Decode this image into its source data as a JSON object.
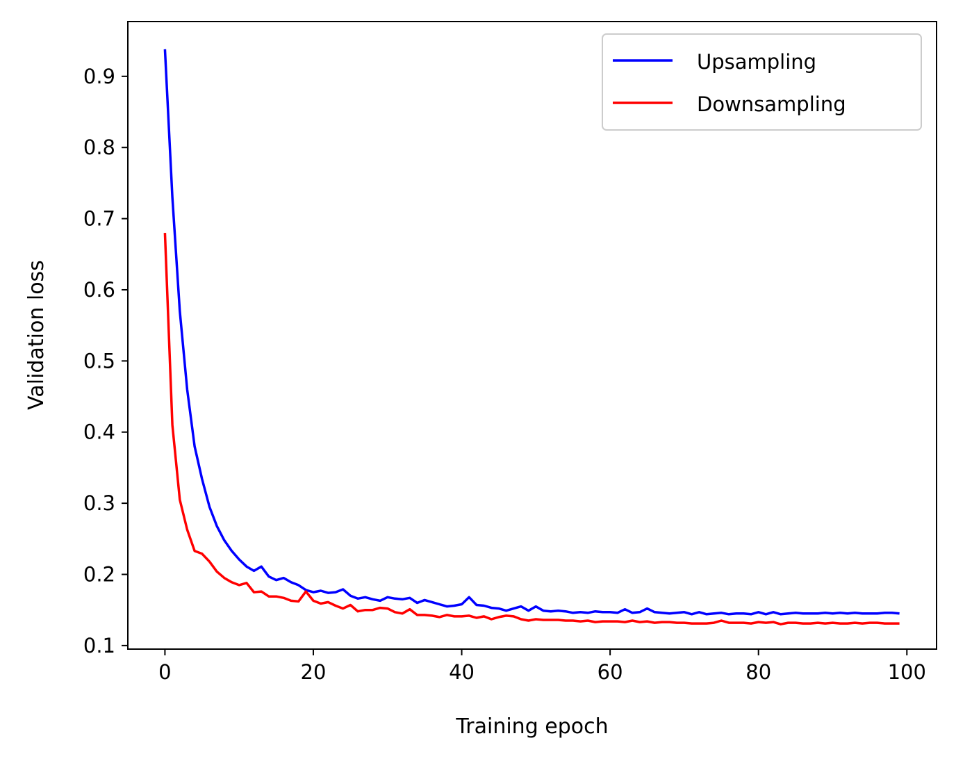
{
  "chart_data": {
    "type": "line",
    "title": "",
    "xlabel": "Training epoch",
    "ylabel": "Validation loss",
    "xlim": [
      -5,
      104
    ],
    "ylim": [
      0.095,
      0.977
    ],
    "xticks": [
      0,
      20,
      40,
      60,
      80,
      100
    ],
    "xtick_labels": [
      "0",
      "20",
      "40",
      "60",
      "80",
      "100"
    ],
    "yticks": [
      0.1,
      0.2,
      0.3,
      0.4,
      0.5,
      0.6,
      0.7,
      0.8,
      0.9
    ],
    "ytick_labels": [
      "0.1",
      "0.2",
      "0.3",
      "0.4",
      "0.5",
      "0.6",
      "0.7",
      "0.8",
      "0.9"
    ],
    "grid": false,
    "legend_position": "top-right",
    "series": [
      {
        "name": "Upsampling",
        "color": "#0000ff",
        "x": [
          0,
          1,
          2,
          3,
          4,
          5,
          6,
          7,
          8,
          9,
          10,
          11,
          12,
          13,
          14,
          15,
          16,
          17,
          18,
          19,
          20,
          21,
          22,
          23,
          24,
          25,
          26,
          27,
          28,
          29,
          30,
          31,
          32,
          33,
          34,
          35,
          36,
          37,
          38,
          39,
          40,
          41,
          42,
          43,
          44,
          45,
          46,
          47,
          48,
          49,
          50,
          51,
          52,
          53,
          54,
          55,
          56,
          57,
          58,
          59,
          60,
          61,
          62,
          63,
          64,
          65,
          66,
          67,
          68,
          69,
          70,
          71,
          72,
          73,
          74,
          75,
          76,
          77,
          78,
          79,
          80,
          81,
          82,
          83,
          84,
          85,
          86,
          87,
          88,
          89,
          90,
          91,
          92,
          93,
          94,
          95,
          96,
          97,
          98,
          99
        ],
        "values": [
          0.938,
          0.73,
          0.57,
          0.46,
          0.38,
          0.334,
          0.295,
          0.268,
          0.248,
          0.233,
          0.221,
          0.211,
          0.205,
          0.211,
          0.197,
          0.192,
          0.195,
          0.189,
          0.185,
          0.178,
          0.175,
          0.177,
          0.174,
          0.175,
          0.179,
          0.17,
          0.166,
          0.168,
          0.165,
          0.163,
          0.168,
          0.166,
          0.165,
          0.167,
          0.16,
          0.164,
          0.161,
          0.158,
          0.155,
          0.156,
          0.158,
          0.168,
          0.157,
          0.156,
          0.153,
          0.152,
          0.149,
          0.152,
          0.155,
          0.149,
          0.155,
          0.149,
          0.148,
          0.149,
          0.148,
          0.146,
          0.147,
          0.146,
          0.148,
          0.147,
          0.147,
          0.146,
          0.151,
          0.146,
          0.147,
          0.152,
          0.147,
          0.146,
          0.145,
          0.146,
          0.147,
          0.144,
          0.147,
          0.144,
          0.145,
          0.146,
          0.144,
          0.145,
          0.145,
          0.144,
          0.147,
          0.144,
          0.147,
          0.144,
          0.145,
          0.146,
          0.145,
          0.145,
          0.145,
          0.146,
          0.145,
          0.146,
          0.145,
          0.146,
          0.145,
          0.145,
          0.145,
          0.146,
          0.146,
          0.145
        ]
      },
      {
        "name": "Downsampling",
        "color": "#ff0000",
        "x": [
          0,
          1,
          2,
          3,
          4,
          5,
          6,
          7,
          8,
          9,
          10,
          11,
          12,
          13,
          14,
          15,
          16,
          17,
          18,
          19,
          20,
          21,
          22,
          23,
          24,
          25,
          26,
          27,
          28,
          29,
          30,
          31,
          32,
          33,
          34,
          35,
          36,
          37,
          38,
          39,
          40,
          41,
          42,
          43,
          44,
          45,
          46,
          47,
          48,
          49,
          50,
          51,
          52,
          53,
          54,
          55,
          56,
          57,
          58,
          59,
          60,
          61,
          62,
          63,
          64,
          65,
          66,
          67,
          68,
          69,
          70,
          71,
          72,
          73,
          74,
          75,
          76,
          77,
          78,
          79,
          80,
          81,
          82,
          83,
          84,
          85,
          86,
          87,
          88,
          89,
          90,
          91,
          92,
          93,
          94,
          95,
          96,
          97,
          98,
          99
        ],
        "values": [
          0.68,
          0.41,
          0.305,
          0.263,
          0.233,
          0.229,
          0.218,
          0.204,
          0.195,
          0.189,
          0.185,
          0.188,
          0.175,
          0.176,
          0.169,
          0.169,
          0.167,
          0.163,
          0.162,
          0.176,
          0.163,
          0.159,
          0.161,
          0.156,
          0.152,
          0.157,
          0.148,
          0.15,
          0.15,
          0.153,
          0.152,
          0.147,
          0.145,
          0.151,
          0.143,
          0.143,
          0.142,
          0.14,
          0.143,
          0.141,
          0.141,
          0.142,
          0.139,
          0.141,
          0.137,
          0.14,
          0.142,
          0.141,
          0.137,
          0.135,
          0.137,
          0.136,
          0.136,
          0.136,
          0.135,
          0.135,
          0.134,
          0.135,
          0.133,
          0.134,
          0.134,
          0.134,
          0.133,
          0.135,
          0.133,
          0.134,
          0.132,
          0.133,
          0.133,
          0.132,
          0.132,
          0.131,
          0.131,
          0.131,
          0.132,
          0.135,
          0.132,
          0.132,
          0.132,
          0.131,
          0.133,
          0.132,
          0.133,
          0.13,
          0.132,
          0.132,
          0.131,
          0.131,
          0.132,
          0.131,
          0.132,
          0.131,
          0.131,
          0.132,
          0.131,
          0.132,
          0.132,
          0.131,
          0.131,
          0.131
        ]
      }
    ]
  }
}
